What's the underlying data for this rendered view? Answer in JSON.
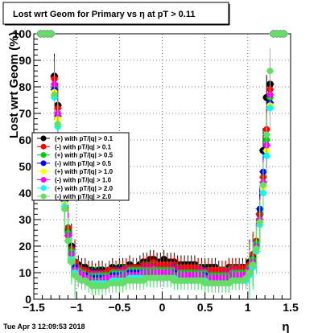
{
  "footer": {
    "timestamp": "Tue Apr  3 12:09:53 2018"
  },
  "chart_data": {
    "type": "scatter",
    "title": "Lost wrt Geom for Primary vs   η at pT > 0.11",
    "xlabel": "η",
    "ylabel": "Lost wrt Geom (%)",
    "xlim": [
      -1.5,
      1.5
    ],
    "ylim": [
      0,
      100
    ],
    "xticks": [
      -1.5,
      -1,
      -0.5,
      0,
      0.5,
      1,
      1.5
    ],
    "xtick_labels": [
      "−1.5",
      "−1",
      "−0.5",
      "0",
      "0.5",
      "1",
      "1.5"
    ],
    "yticks": [
      0,
      10,
      20,
      30,
      40,
      50,
      60,
      70,
      80,
      90,
      100
    ],
    "ytick_labels": [
      "0",
      "10",
      "20",
      "30",
      "40",
      "50",
      "60",
      "70",
      "80",
      "90",
      "100"
    ],
    "grid": true,
    "legend_position": "left-middle",
    "x": [
      -1.42,
      -1.38,
      -1.34,
      -1.3,
      -1.26,
      -1.22,
      -1.18,
      -1.14,
      -1.1,
      -1.06,
      -1.02,
      -0.98,
      -0.94,
      -0.9,
      -0.86,
      -0.82,
      -0.78,
      -0.74,
      -0.7,
      -0.66,
      -0.62,
      -0.58,
      -0.54,
      -0.5,
      -0.46,
      -0.42,
      -0.38,
      -0.34,
      -0.3,
      -0.26,
      -0.22,
      -0.18,
      -0.14,
      -0.1,
      -0.06,
      -0.02,
      0.02,
      0.06,
      0.1,
      0.14,
      0.18,
      0.22,
      0.26,
      0.3,
      0.34,
      0.38,
      0.42,
      0.46,
      0.5,
      0.54,
      0.58,
      0.62,
      0.66,
      0.7,
      0.74,
      0.78,
      0.82,
      0.86,
      0.9,
      0.94,
      0.98,
      1.02,
      1.06,
      1.1,
      1.14,
      1.18,
      1.22,
      1.26,
      1.3,
      1.34,
      1.38,
      1.42
    ],
    "series": [
      {
        "name": "(+) with pT/|q| > 0.1",
        "color": "#000000",
        "values": [
          100,
          100,
          100,
          100,
          84,
          73,
          53,
          40,
          26,
          20,
          14,
          13,
          12,
          12,
          11,
          11,
          10,
          11,
          11,
          10,
          11,
          12,
          11,
          12,
          12,
          12,
          13,
          12,
          12,
          13,
          14,
          14,
          15,
          15,
          14,
          14,
          15,
          14,
          14,
          14,
          13,
          13,
          13,
          13,
          13,
          13,
          12,
          12,
          12,
          12,
          12,
          12,
          11,
          11,
          11,
          12,
          12,
          12,
          12,
          12,
          12,
          14,
          16,
          20,
          32,
          56,
          76,
          81,
          100,
          100,
          100,
          100
        ]
      },
      {
        "name": "(-) with pT/|q| > 0.1",
        "color": "#ff0000",
        "values": [
          100,
          100,
          100,
          100,
          83,
          72,
          54,
          39,
          27,
          19,
          14,
          12,
          11,
          11,
          10,
          10,
          10,
          10,
          10,
          10,
          11,
          11,
          11,
          11,
          11,
          12,
          12,
          12,
          12,
          12,
          13,
          13,
          13,
          14,
          13,
          13,
          13,
          13,
          13,
          13,
          12,
          12,
          12,
          12,
          12,
          12,
          12,
          11,
          11,
          11,
          11,
          11,
          11,
          11,
          11,
          11,
          12,
          11,
          12,
          11,
          12,
          13,
          17,
          22,
          32,
          46,
          64,
          79,
          100,
          100,
          100,
          100
        ]
      },
      {
        "name": "(+) with pT/|q| > 0.5",
        "color": "#00cc00",
        "values": [
          100,
          100,
          100,
          100,
          80,
          70,
          52,
          38,
          25,
          18,
          12,
          11,
          10,
          9,
          9,
          9,
          9,
          9,
          9,
          9,
          9,
          10,
          10,
          10,
          10,
          10,
          11,
          11,
          11,
          11,
          11,
          11,
          11,
          11,
          11,
          11,
          11,
          11,
          11,
          10,
          10,
          10,
          10,
          10,
          10,
          10,
          10,
          10,
          10,
          9,
          9,
          9,
          9,
          9,
          9,
          9,
          10,
          10,
          10,
          10,
          10,
          12,
          15,
          21,
          30,
          44,
          60,
          76,
          100,
          100,
          100,
          100
        ]
      },
      {
        "name": "(-) with pT/|q| > 0.5",
        "color": "#0000ff",
        "values": [
          100,
          100,
          100,
          100,
          79,
          69,
          50,
          37,
          24,
          17,
          12,
          10,
          9,
          9,
          8,
          8,
          8,
          8,
          8,
          8,
          8,
          9,
          9,
          9,
          9,
          9,
          10,
          10,
          10,
          10,
          10,
          10,
          10,
          10,
          10,
          10,
          10,
          10,
          10,
          10,
          9,
          9,
          9,
          9,
          9,
          9,
          9,
          9,
          9,
          8,
          8,
          8,
          8,
          8,
          8,
          8,
          9,
          9,
          9,
          9,
          9,
          11,
          14,
          20,
          34,
          48,
          58,
          74,
          100,
          100,
          100,
          100
        ]
      },
      {
        "name": "(+) with pT/|q| > 1.0",
        "color": "#ffff00",
        "values": [
          100,
          100,
          100,
          100,
          78,
          68,
          49,
          36,
          23,
          16,
          11,
          9,
          8,
          8,
          7,
          7,
          7,
          7,
          7,
          7,
          7,
          8,
          8,
          8,
          8,
          8,
          9,
          9,
          9,
          9,
          9,
          9,
          9,
          9,
          9,
          9,
          9,
          9,
          9,
          9,
          8,
          8,
          8,
          8,
          8,
          8,
          8,
          8,
          8,
          7,
          7,
          7,
          7,
          7,
          7,
          7,
          8,
          8,
          8,
          8,
          8,
          10,
          13,
          19,
          29,
          42,
          56,
          73,
          100,
          100,
          100,
          100
        ]
      },
      {
        "name": "(-) with pT/|q| > 1.0",
        "color": "#ff00ff",
        "values": [
          100,
          100,
          100,
          100,
          81,
          70,
          51,
          38,
          24,
          17,
          11,
          10,
          9,
          8,
          8,
          7,
          7,
          7,
          7,
          8,
          8,
          8,
          8,
          8,
          9,
          9,
          9,
          9,
          9,
          9,
          10,
          10,
          10,
          10,
          10,
          10,
          10,
          10,
          10,
          9,
          9,
          9,
          9,
          9,
          9,
          9,
          9,
          9,
          8,
          8,
          8,
          8,
          8,
          8,
          8,
          8,
          9,
          9,
          9,
          9,
          9,
          11,
          14,
          20,
          30,
          44,
          58,
          77,
          100,
          100,
          100,
          100
        ]
      },
      {
        "name": "(+) with pT/|q| > 2.0",
        "color": "#00ffff",
        "values": [
          100,
          100,
          100,
          100,
          76,
          65,
          48,
          35,
          22,
          15,
          10,
          8,
          7,
          7,
          6,
          6,
          6,
          6,
          6,
          6,
          6,
          7,
          7,
          7,
          7,
          7,
          8,
          8,
          8,
          8,
          8,
          8,
          8,
          8,
          8,
          8,
          8,
          8,
          8,
          8,
          7,
          7,
          7,
          7,
          7,
          7,
          7,
          7,
          7,
          6,
          6,
          6,
          6,
          6,
          6,
          6,
          7,
          7,
          7,
          7,
          7,
          9,
          12,
          18,
          28,
          40,
          54,
          72,
          100,
          100,
          100,
          100
        ]
      },
      {
        "name": "(-) with pT/|q| > 2.0",
        "color": "#66dd66",
        "values": [
          100,
          100,
          100,
          100,
          77,
          66,
          48,
          34,
          22,
          14,
          9,
          8,
          7,
          7,
          6,
          5,
          5,
          5,
          5,
          5,
          6,
          6,
          6,
          6,
          6,
          7,
          7,
          7,
          7,
          7,
          7,
          8,
          8,
          8,
          8,
          8,
          8,
          8,
          8,
          7,
          7,
          7,
          7,
          7,
          7,
          7,
          7,
          7,
          6,
          6,
          6,
          6,
          6,
          6,
          6,
          6,
          7,
          7,
          7,
          7,
          8,
          10,
          13,
          19,
          29,
          43,
          62,
          86,
          100,
          100,
          100,
          100
        ]
      }
    ]
  }
}
